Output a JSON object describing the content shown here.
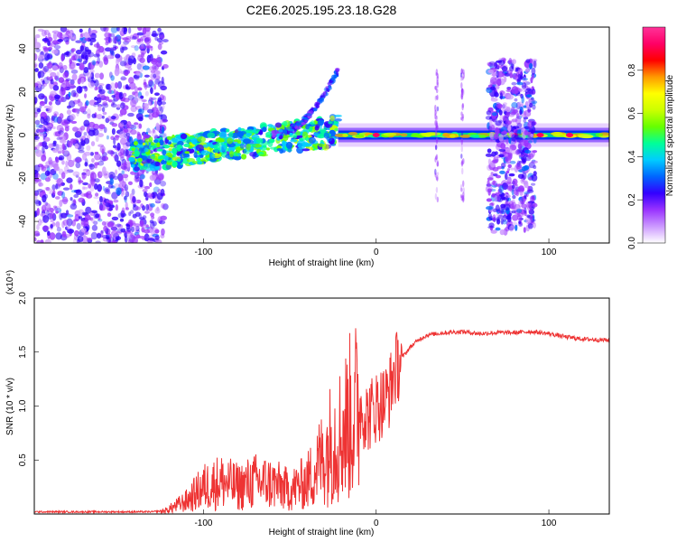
{
  "figure_title": "C2E6.2025.195.23.18.G28",
  "chart_data": [
    {
      "type": "heatmap",
      "title": "C2E6.2025.195.23.18.G28",
      "xlabel": "Height of straight line (km)",
      "ylabel": "Frequency (Hz)",
      "xlim": [
        -198,
        135
      ],
      "ylim": [
        -50,
        50
      ],
      "x_ticks": [
        -100,
        0,
        100
      ],
      "y_ticks": [
        -40,
        -20,
        0,
        20,
        40
      ],
      "colorbar": {
        "label": "Normalized spectral amplitude",
        "range": [
          0,
          1
        ],
        "ticks": [
          0.0,
          0.2,
          0.4,
          0.6,
          0.8
        ],
        "colormap": [
          "#ffffff",
          "#cc99ff",
          "#9933ff",
          "#3300ff",
          "#0066ff",
          "#00ccff",
          "#00ff99",
          "#66ff00",
          "#ccff00",
          "#ffff00",
          "#ff9900",
          "#ff0000",
          "#ff0066",
          "#ff3399"
        ]
      },
      "features": [
        {
          "description": "broadband noise",
          "x_range": [
            -198,
            -122
          ],
          "freq_range": [
            -50,
            50
          ]
        },
        {
          "description": "narrow band near 0 Hz",
          "x_range": [
            -142,
            -22
          ],
          "freq_range": [
            -15,
            10
          ]
        },
        {
          "description": "rising tone",
          "x_range": [
            -60,
            -22
          ],
          "freq_range": [
            0,
            30
          ]
        },
        {
          "description": "steady tone at 0 Hz",
          "x_range": [
            -22,
            135
          ],
          "freq": 0
        },
        {
          "description": "vertical streak",
          "x": 35,
          "freq_range": [
            -30,
            30
          ]
        },
        {
          "description": "vertical streak",
          "x": 50,
          "freq_range": [
            -30,
            30
          ]
        },
        {
          "description": "broadband burst",
          "x_range": [
            65,
            92
          ],
          "freq_range": [
            -45,
            35
          ]
        }
      ]
    },
    {
      "type": "line",
      "xlabel": "Height of straight line (km)",
      "ylabel": "SNR (10 * v/v)",
      "y_multiplier": "(x10⁴)",
      "xlim": [
        -198,
        135
      ],
      "ylim": [
        0,
        2.0
      ],
      "x_ticks": [
        -100,
        0,
        100
      ],
      "y_ticks": [
        0.5,
        1.0,
        1.5,
        2.0
      ],
      "series": [
        {
          "color": "#ee3333",
          "x": [
            -198,
            -170,
            -140,
            -130,
            -122,
            -110,
            -100,
            -90,
            -80,
            -70,
            -60,
            -50,
            -40,
            -30,
            -25,
            -20,
            -15,
            -12,
            -10,
            -5,
            0,
            5,
            8,
            10,
            15,
            20,
            25,
            30,
            40,
            50,
            60,
            70,
            80,
            90,
            100,
            110,
            120,
            135
          ],
          "y": [
            0.02,
            0.02,
            0.02,
            0.02,
            0.03,
            0.12,
            0.25,
            0.3,
            0.25,
            0.3,
            0.28,
            0.22,
            0.3,
            0.55,
            0.7,
            0.75,
            0.9,
            0.95,
            1.0,
            0.9,
            1.0,
            1.05,
            1.15,
            1.3,
            1.45,
            1.55,
            1.62,
            1.66,
            1.68,
            1.69,
            1.67,
            1.68,
            1.68,
            1.69,
            1.67,
            1.64,
            1.62,
            1.61
          ]
        }
      ]
    }
  ]
}
